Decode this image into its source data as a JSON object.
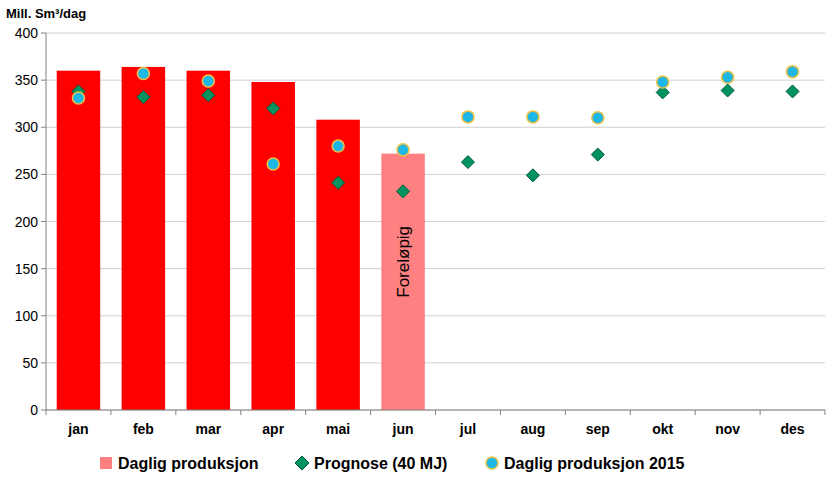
{
  "chart_data": {
    "type": "bar",
    "y_label": "Mill. Sm³/dag",
    "categories": [
      "jan",
      "feb",
      "mar",
      "apr",
      "mai",
      "jun",
      "jul",
      "aug",
      "sep",
      "okt",
      "nov",
      "des"
    ],
    "series": [
      {
        "name": "Daglig produksjon",
        "type": "bar",
        "color": "#ff8080",
        "colors": [
          "#ff0000",
          "#ff0000",
          "#ff0000",
          "#ff0000",
          "#ff0000",
          "#ff8080",
          "#ff0000",
          "#ff0000",
          "#ff0000",
          "#ff0000",
          "#ff0000",
          "#ff0000"
        ],
        "values": [
          360,
          364,
          360,
          348,
          308,
          272,
          null,
          null,
          null,
          null,
          null,
          null
        ]
      },
      {
        "name": "Prognose (40 MJ)",
        "type": "scatter",
        "marker": "diamond",
        "color": "#00935f",
        "values": [
          338,
          332,
          334,
          320,
          241,
          232,
          263,
          249,
          271,
          337,
          339,
          338
        ]
      },
      {
        "name": "Daglig produksjon 2015",
        "type": "scatter",
        "marker": "circle",
        "color": "#1fb8e6",
        "values": [
          331,
          357,
          349,
          261,
          280,
          276,
          311,
          311,
          310,
          348,
          353,
          359
        ]
      }
    ],
    "annotations": [
      {
        "text": "Foreløpig",
        "category": "jun"
      }
    ],
    "ylim": [
      0,
      400
    ],
    "yticks": [
      0,
      50,
      100,
      150,
      200,
      250,
      300,
      350,
      400
    ],
    "grid": true,
    "legend": "bottom"
  }
}
